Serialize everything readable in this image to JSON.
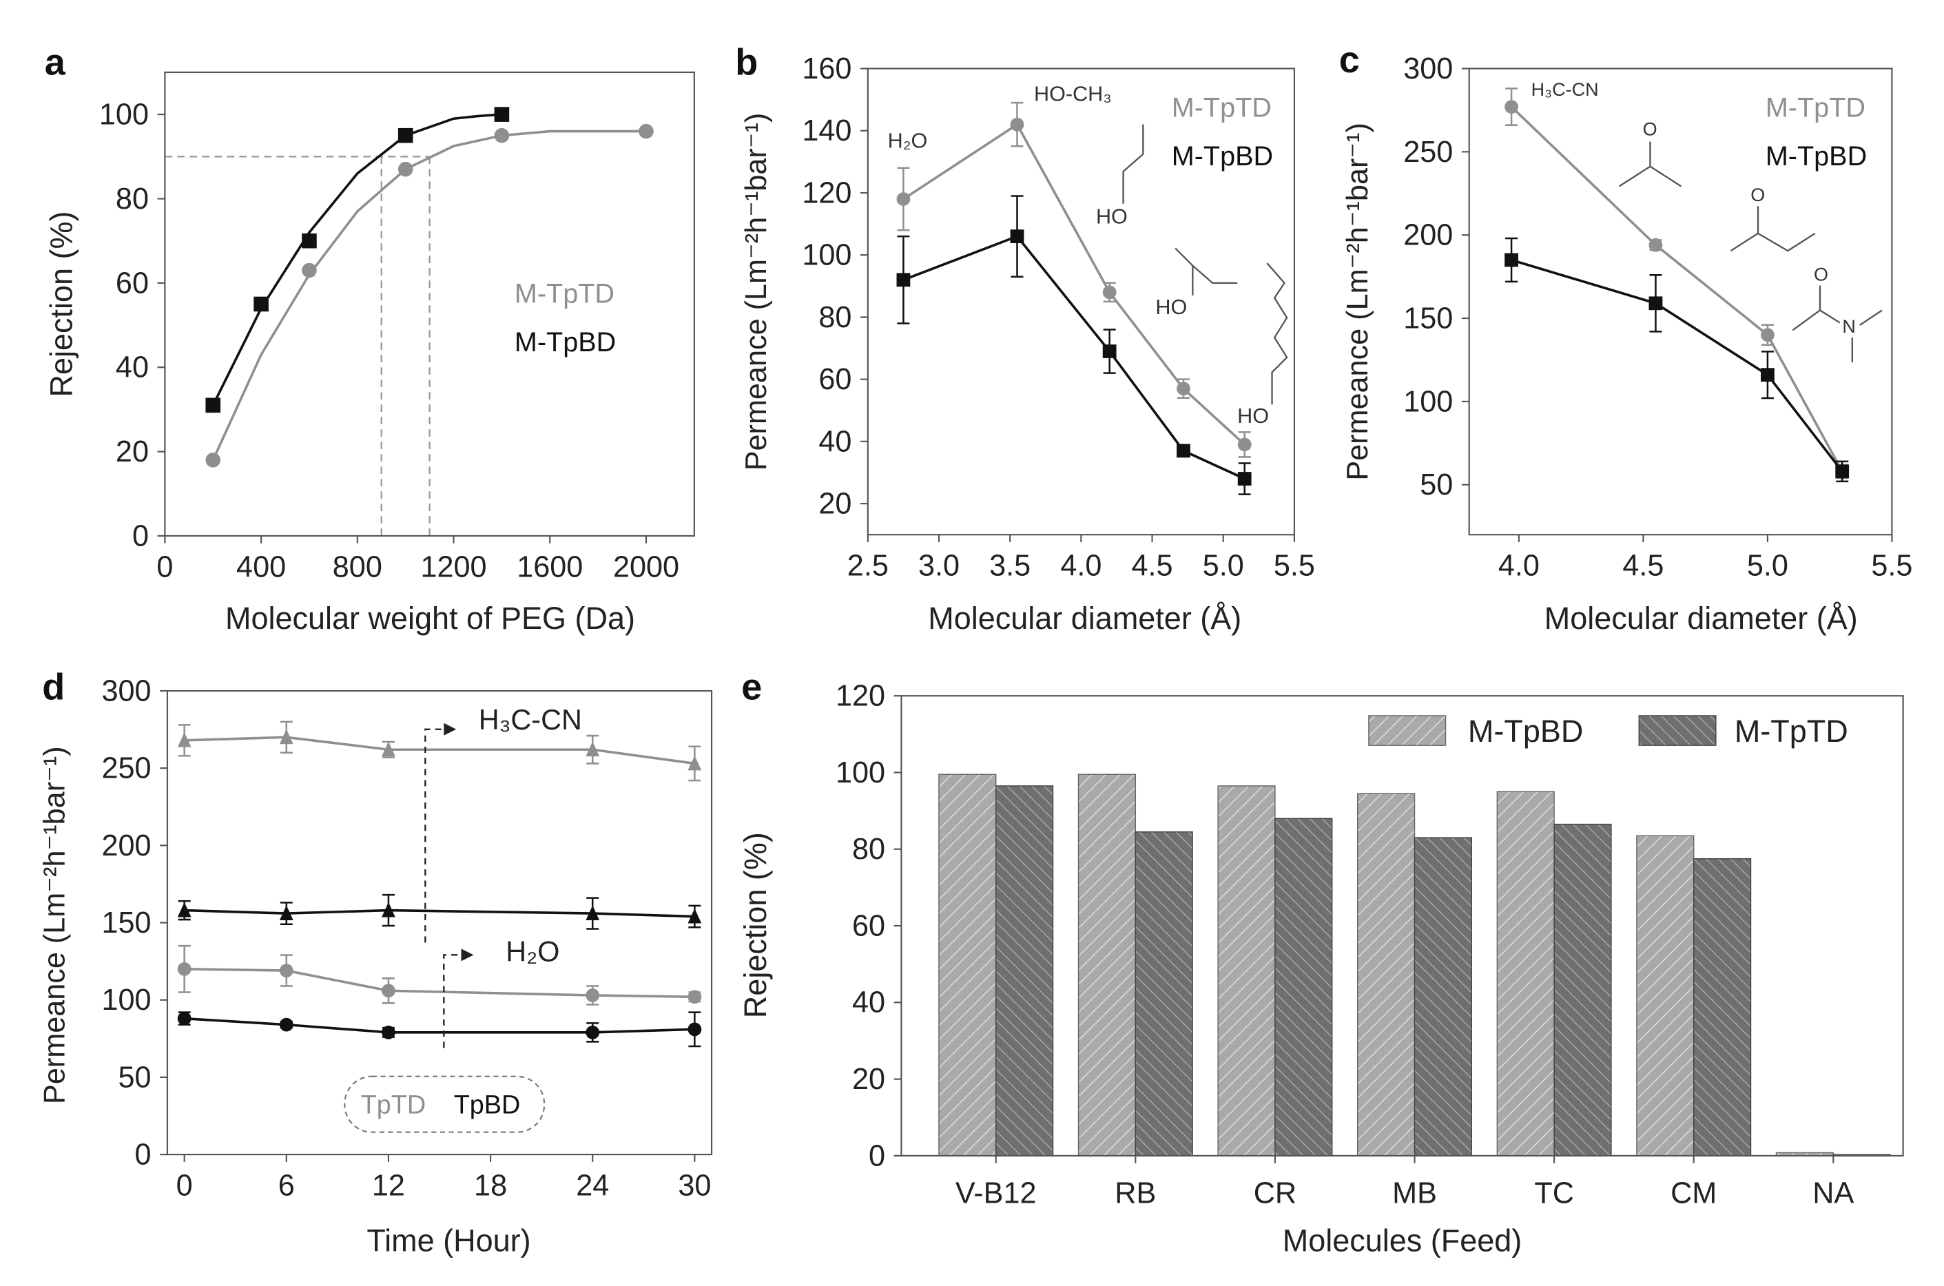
{
  "colors": {
    "black": "#111111",
    "gray": "#8f8f8f",
    "guide": "#9a9a9a",
    "bar_light": "#a9a9a9",
    "bar_dark": "#6f6f6f"
  },
  "chart_data": [
    {
      "panel": "a",
      "type": "line",
      "xlabel": "Molecular weight of PEG (Da)",
      "ylabel": "Rejection (%)",
      "xlim": [
        0,
        2200
      ],
      "ylim": [
        0,
        110
      ],
      "xticks": [
        0,
        400,
        800,
        1200,
        1600,
        2000
      ],
      "yticks": [
        0,
        20,
        40,
        60,
        80,
        100
      ],
      "series": [
        {
          "name": "M-TpBD",
          "color": "black",
          "marker": "square",
          "x": [
            200,
            400,
            600,
            1000,
            1400
          ],
          "y": [
            31,
            55,
            70,
            95,
            100
          ],
          "fit_x": [
            200,
            400,
            600,
            800,
            1000,
            1200,
            1300,
            1400
          ],
          "fit_y": [
            31,
            54,
            72,
            86,
            95,
            99,
            99.6,
            100
          ]
        },
        {
          "name": "M-TpTD",
          "color": "gray",
          "marker": "circle",
          "x": [
            200,
            600,
            1000,
            1400,
            2000
          ],
          "y": [
            18,
            63,
            87,
            95,
            96
          ],
          "fit_x": [
            200,
            400,
            600,
            800,
            1000,
            1200,
            1400,
            1600,
            1800,
            2000
          ],
          "fit_y": [
            18,
            43,
            62,
            77,
            87,
            92.5,
            95,
            96,
            96,
            96
          ]
        }
      ],
      "legend": [
        "M-TpTD",
        "M-TpBD"
      ],
      "guides": {
        "rejection_level": 90,
        "mwco": [
          900,
          1100
        ]
      }
    },
    {
      "panel": "b",
      "type": "line",
      "xlabel": "Molecular diameter (Å)",
      "ylabel": "Permeance (Lm⁻²h⁻¹bar⁻¹)",
      "xlim": [
        2.5,
        5.5
      ],
      "ylim": [
        10,
        160
      ],
      "xticks": [
        2.5,
        3.0,
        3.5,
        4.0,
        4.5,
        5.0,
        5.5
      ],
      "yticks": [
        20,
        40,
        60,
        80,
        100,
        120,
        140,
        160
      ],
      "series": [
        {
          "name": "M-TpTD",
          "color": "gray",
          "marker": "circle",
          "x": [
            2.75,
            3.55,
            4.2,
            4.72,
            5.15
          ],
          "y": [
            118,
            142,
            88,
            57,
            39
          ],
          "err": [
            10,
            7,
            3,
            3,
            4
          ]
        },
        {
          "name": "M-TpBD",
          "color": "black",
          "marker": "square",
          "x": [
            2.75,
            3.55,
            4.2,
            4.72,
            5.15
          ],
          "y": [
            92,
            106,
            69,
            37,
            28
          ],
          "err": [
            14,
            13,
            7,
            1,
            5
          ]
        }
      ],
      "legend": [
        "M-TpTD",
        "M-TpBD"
      ],
      "annotations": {
        "water": "H₂O",
        "methanol": "HO-CH₃",
        "ethanol_oh": "HO",
        "isopropanol_oh": "HO",
        "butanol_oh": "HO"
      }
    },
    {
      "panel": "c",
      "type": "line",
      "xlabel": "Molecular diameter (Å)",
      "ylabel": "Permeance (Lm⁻²h⁻¹bar⁻¹)",
      "xlim": [
        3.8,
        5.5
      ],
      "ylim": [
        20,
        300
      ],
      "xticks": [
        4.0,
        4.5,
        5.0,
        5.5
      ],
      "yticks": [
        50,
        100,
        150,
        200,
        250,
        300
      ],
      "series": [
        {
          "name": "M-TpTD",
          "color": "gray",
          "marker": "circle",
          "x": [
            3.97,
            4.55,
            5.0,
            5.3
          ],
          "y": [
            277,
            194,
            140,
            58
          ],
          "err": [
            11,
            3,
            6,
            4
          ]
        },
        {
          "name": "M-TpBD",
          "color": "black",
          "marker": "square",
          "x": [
            3.97,
            4.55,
            5.0,
            5.3
          ],
          "y": [
            185,
            159,
            116,
            58
          ],
          "err": [
            13,
            17,
            14,
            6
          ]
        }
      ],
      "legend": [
        "M-TpTD",
        "M-TpBD"
      ],
      "annotations": {
        "acetonitrile": "H₃C-CN",
        "acetone_o": "O",
        "butanone_o": "O",
        "dmf_o": "O",
        "dmf_n": "N"
      }
    },
    {
      "panel": "d",
      "type": "line",
      "xlabel": "Time (Hour)",
      "ylabel": "Permeance (Lm⁻²h⁻¹bar⁻¹)",
      "xlim": [
        -1,
        31
      ],
      "ylim": [
        0,
        300
      ],
      "xticks": [
        0,
        6,
        12,
        18,
        24,
        30
      ],
      "yticks": [
        0,
        50,
        100,
        150,
        200,
        250,
        300
      ],
      "series": [
        {
          "name": "TpTD H₃C-CN",
          "color": "gray",
          "marker": "triangle",
          "x": [
            0,
            6,
            12,
            24,
            30
          ],
          "y": [
            268,
            270,
            262,
            262,
            253
          ],
          "err": [
            10,
            10,
            5,
            9,
            11
          ]
        },
        {
          "name": "TpBD H₃C-CN",
          "color": "black",
          "marker": "triangle",
          "x": [
            0,
            6,
            12,
            24,
            30
          ],
          "y": [
            158,
            156,
            158,
            156,
            154
          ],
          "err": [
            6,
            7,
            10,
            10,
            7
          ]
        },
        {
          "name": "TpTD H₂O",
          "color": "gray",
          "marker": "circle",
          "x": [
            0,
            6,
            12,
            24,
            30
          ],
          "y": [
            120,
            119,
            106,
            103,
            102
          ],
          "err": [
            15,
            10,
            8,
            6,
            3
          ]
        },
        {
          "name": "TpBD H₂O",
          "color": "black",
          "marker": "circle",
          "x": [
            0,
            6,
            12,
            24,
            30
          ],
          "y": [
            88,
            84,
            79,
            79,
            81
          ],
          "err": [
            4,
            2,
            3,
            6,
            11
          ]
        }
      ],
      "annotations": {
        "solvent_a": "H₃C-CN",
        "solvent_b": "H₂O"
      },
      "legend": [
        "TpTD",
        "TpBD"
      ]
    },
    {
      "panel": "e",
      "type": "bar",
      "xlabel": "Molecules (Feed)",
      "ylabel": "Rejection (%)",
      "ylim": [
        0,
        120
      ],
      "yticks": [
        0,
        20,
        40,
        60,
        80,
        100,
        120
      ],
      "categories": [
        "V-B12",
        "RB",
        "CR",
        "MB",
        "TC",
        "CM",
        "NA"
      ],
      "series": [
        {
          "name": "M-TpBD",
          "color": "bar_light",
          "values": [
            99.5,
            99.5,
            96.5,
            94.5,
            95,
            83.5,
            0.8
          ]
        },
        {
          "name": "M-TpTD",
          "color": "bar_dark",
          "values": [
            96.5,
            84.5,
            88,
            83,
            86.5,
            77.5,
            0.3
          ]
        }
      ],
      "legend": [
        "M-TpBD",
        "M-TpTD"
      ]
    }
  ],
  "panel_labels": [
    "a",
    "b",
    "c",
    "d",
    "e"
  ]
}
